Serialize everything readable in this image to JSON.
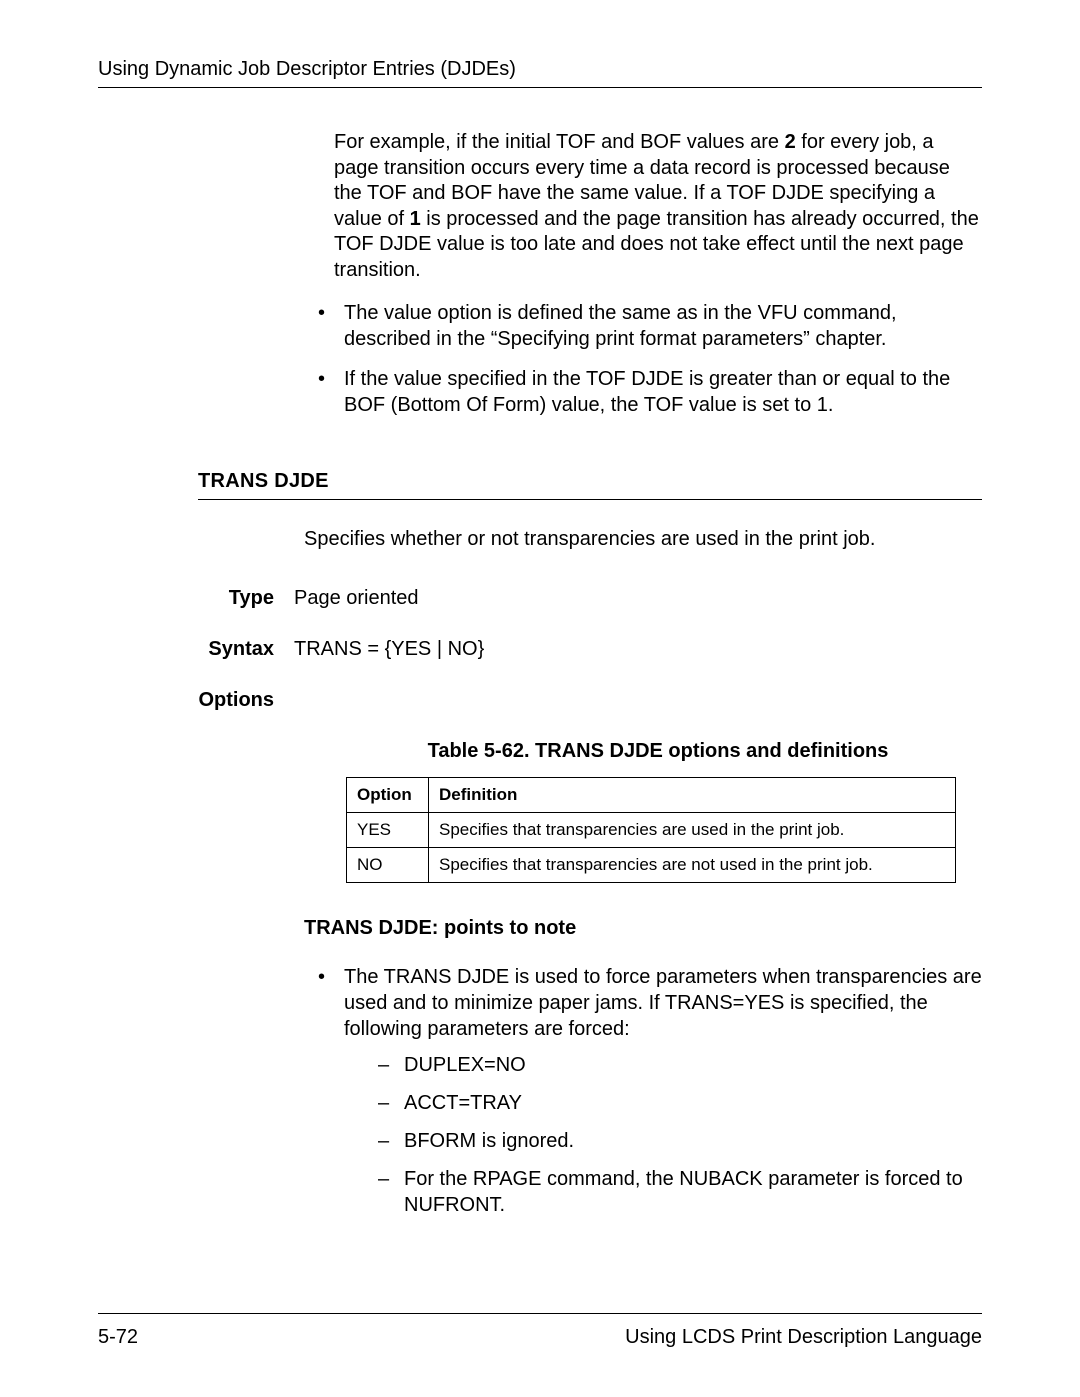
{
  "header": {
    "title": "Using Dynamic Job Descriptor Entries (DJDEs)"
  },
  "intro": {
    "para_pre": "For example, if the initial TOF and BOF values are ",
    "bold1": "2",
    "para_mid1": " for every job, a page transition occurs every time a data record is processed because the TOF and BOF have the same value. If a TOF DJDE specifying a value of ",
    "bold2": "1",
    "para_post": " is processed and the page transition has already occurred, the TOF DJDE value is too late and does not take effect until the next page transition.",
    "bullets": {
      "b1_pre": "The ",
      "b1_italic": "value",
      "b1_post": " option is defined the same as in the VFU command, described in the “Specifying print format parameters” chapter.",
      "b2": "If the value specified in the TOF DJDE is greater than or equal to the BOF (Bottom Of Form) value, the TOF value is set to 1."
    }
  },
  "section": {
    "title": "Trans DJDE",
    "summary": "Specifies whether or not transparencies are used in the print job.",
    "type_label": "Type",
    "type_value": "Page oriented",
    "syntax_label": "Syntax",
    "syntax_value": "TRANS = {YES | NO}",
    "options_label": "Options",
    "table": {
      "caption": "Table 5-62. TRANS DJDE options and definitions",
      "columns": [
        "Option",
        "Definition"
      ],
      "rows": [
        [
          "YES",
          "Specifies that transparencies are used in the print job."
        ],
        [
          "NO",
          "Specifies that transparencies are not used in the print job."
        ]
      ]
    },
    "notes_heading": "TRANS DJDE: points to note",
    "note1": "The TRANS DJDE is used to force parameters when transparencies are used and to minimize paper jams. If TRANS=YES is specified, the following parameters are forced:",
    "sub": {
      "s1": "DUPLEX=NO",
      "s2": "ACCT=TRAY",
      "s3": "BFORM is ignored.",
      "s4": "For the RPAGE command, the NUBACK parameter is forced to NUFRONT."
    }
  },
  "footer": {
    "page_num": "5-72",
    "doc_title": "Using LCDS Print Description Language"
  }
}
